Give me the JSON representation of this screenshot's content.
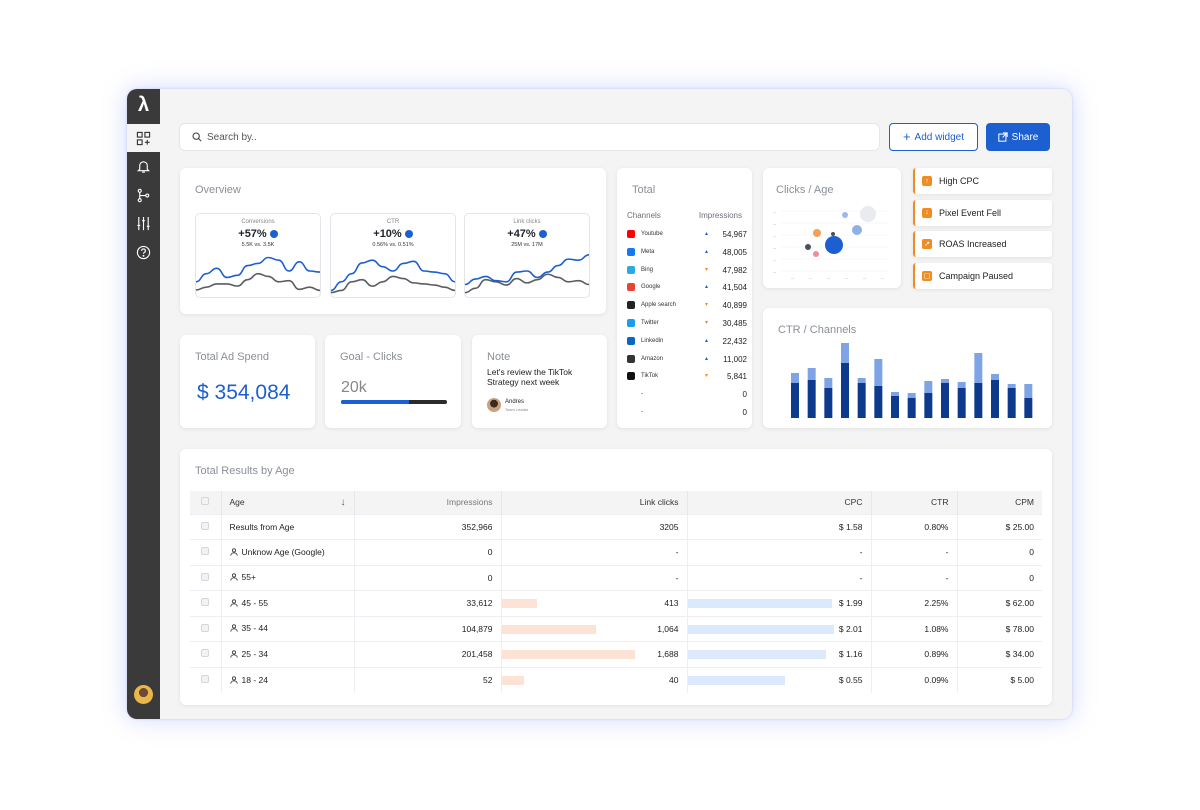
{
  "app": {
    "logo": "λ",
    "search_placeholder": "Search by..",
    "add_widget_label": "Add widget",
    "share_label": "Share",
    "accent": "#1c5fd0",
    "alert_color": "#f08c22"
  },
  "sidebar": {
    "items": [
      {
        "icon": "widgets-icon"
      },
      {
        "icon": "bell-icon"
      },
      {
        "icon": "branch-icon"
      },
      {
        "icon": "sliders-icon"
      },
      {
        "icon": "help-icon"
      }
    ]
  },
  "overview": {
    "title": "Overview",
    "cards": [
      {
        "label": "Conversions",
        "value": "+57%",
        "sub": "5.5K vs. 3.5K",
        "blue": [
          0.7,
          0.55,
          0.45,
          0.62,
          0.58,
          0.4,
          0.36,
          0.25,
          0.3,
          0.5,
          0.33,
          0.5,
          0.52
        ],
        "gray": [
          0.85,
          0.8,
          0.74,
          0.74,
          0.78,
          0.66,
          0.55,
          0.6,
          0.7,
          0.68,
          0.84,
          0.8,
          0.86
        ]
      },
      {
        "label": "CTR",
        "value": "+10%",
        "sub": "0.56% vs. 0.51%",
        "blue": [
          0.86,
          0.7,
          0.55,
          0.35,
          0.3,
          0.42,
          0.5,
          0.36,
          0.32,
          0.5,
          0.52,
          0.55,
          0.7
        ],
        "gray": [
          0.9,
          0.86,
          0.7,
          0.66,
          0.78,
          0.7,
          0.6,
          0.64,
          0.72,
          0.74,
          0.76,
          0.8,
          0.86
        ]
      },
      {
        "label": "Link clicks",
        "value": "+47%",
        "sub": "25M vs. 17M",
        "blue": [
          0.75,
          0.65,
          0.6,
          0.68,
          0.7,
          0.52,
          0.5,
          0.62,
          0.52,
          0.4,
          0.28,
          0.3,
          0.2
        ],
        "gray": [
          0.9,
          0.82,
          0.66,
          0.7,
          0.76,
          0.64,
          0.72,
          0.66,
          0.56,
          0.62,
          0.7,
          0.68,
          0.75
        ]
      }
    ]
  },
  "spend": {
    "title": "Total Ad Spend",
    "value": "$ 354,084"
  },
  "goal": {
    "title": "Goal - Clicks",
    "value": "20k",
    "progress": 0.64
  },
  "note": {
    "title": "Note",
    "text_line1": "Let's review the TikTok",
    "text_line2": "Strategy next week",
    "author": "Andres",
    "role": "Team Leader"
  },
  "total": {
    "title": "Total",
    "col_channels": "Channels",
    "col_impressions": "Impressions",
    "rows": [
      {
        "name": "Youtube",
        "icon_color": "#ff0000",
        "trend": "up",
        "value": "54,967"
      },
      {
        "name": "Meta",
        "icon_color": "#1877f2",
        "trend": "up",
        "value": "48,005"
      },
      {
        "name": "Bing",
        "icon_color": "#2da9e1",
        "trend": "down",
        "value": "47,982"
      },
      {
        "name": "Google",
        "icon_color": "#ea4335",
        "trend": "up",
        "value": "41,504"
      },
      {
        "name": "Apple search",
        "icon_color": "#222222",
        "trend": "down",
        "value": "40,899"
      },
      {
        "name": "Twitter",
        "icon_color": "#1d9bf0",
        "trend": "down",
        "value": "30,485"
      },
      {
        "name": "Linkedin",
        "icon_color": "#0a66c2",
        "trend": "up",
        "value": "22,432"
      },
      {
        "name": "Amazon",
        "icon_color": "#333333",
        "trend": "up",
        "value": "11,002"
      },
      {
        "name": "TikTok",
        "icon_color": "#111111",
        "trend": "down",
        "value": "5,841"
      },
      {
        "name": "-",
        "icon_color": "",
        "trend": "",
        "value": "0"
      },
      {
        "name": "-",
        "icon_color": "",
        "trend": "",
        "value": "0"
      }
    ]
  },
  "clicks_age": {
    "title": "Clicks / Age"
  },
  "alerts": [
    {
      "label": "High CPC",
      "icon": "arrow-up-icon"
    },
    {
      "label": "Pixel Event Fell",
      "icon": "arrow-down-icon"
    },
    {
      "label": "ROAS Increased",
      "icon": "trend-up-icon"
    },
    {
      "label": "Campaign Paused",
      "icon": "pause-icon"
    }
  ],
  "ctr_channels": {
    "title": "CTR / Channels"
  },
  "chart_data": {
    "type": "bar",
    "title": "CTR / Channels",
    "series": [
      {
        "values": [
          0.35,
          0.38,
          0.3,
          0.55,
          0.35,
          0.32,
          0.22,
          0.2,
          0.25,
          0.35,
          0.3,
          0.35,
          0.38,
          0.3,
          0.2
        ]
      },
      {
        "values": [
          0.1,
          0.12,
          0.1,
          0.2,
          0.05,
          0.27,
          0.04,
          0.05,
          0.12,
          0.04,
          0.06,
          0.3,
          0.06,
          0.04,
          0.14
        ]
      }
    ]
  },
  "results": {
    "title": "Total Results by Age",
    "headers": {
      "age": "Age",
      "impressions": "Impressions",
      "clicks": "Link clicks",
      "cpc": "CPC",
      "ctr": "CTR",
      "cpm": "CPM"
    },
    "rows": [
      {
        "age": "Results from Age",
        "impressions": "352,966",
        "clicks": "3205",
        "cpc": "$ 1.58",
        "ctr": "0.80%",
        "cpm": "$ 25.00",
        "user": false,
        "imp_bar": 0,
        "cpc_bar": 0
      },
      {
        "age": "Unknow Age (Google)",
        "impressions": "0",
        "clicks": "-",
        "cpc": "-",
        "ctr": "-",
        "cpm": "0",
        "user": true,
        "imp_bar": 0,
        "cpc_bar": 0
      },
      {
        "age": "55+",
        "impressions": "0",
        "clicks": "-",
        "cpc": "-",
        "ctr": "-",
        "cpm": "0",
        "user": true,
        "imp_bar": 0,
        "cpc_bar": 0
      },
      {
        "age": "45 - 55",
        "impressions": "33,612",
        "clicks": "413",
        "cpc": "$ 1.99",
        "ctr": "2.25%",
        "cpm": "$ 62.00",
        "user": true,
        "imp_bar": 0.27,
        "cpc_bar": 0.99
      },
      {
        "age": "35 - 44",
        "impressions": "104,879",
        "clicks": "1,064",
        "cpc": "$ 2.01",
        "ctr": "1.08%",
        "cpm": "$ 78.00",
        "user": true,
        "imp_bar": 0.71,
        "cpc_bar": 1.0
      },
      {
        "age": "25 - 34",
        "impressions": "201,458",
        "clicks": "1,688",
        "cpc": "$ 1.16",
        "ctr": "0.89%",
        "cpm": "$ 34.00",
        "user": true,
        "imp_bar": 1.0,
        "cpc_bar": 0.95
      },
      {
        "age": "18 - 24",
        "impressions": "52",
        "clicks": "40",
        "cpc": "$ 0.55",
        "ctr": "0.09%",
        "cpm": "$ 5.00",
        "user": true,
        "imp_bar": 0.17,
        "cpc_bar": 0.67
      }
    ]
  }
}
